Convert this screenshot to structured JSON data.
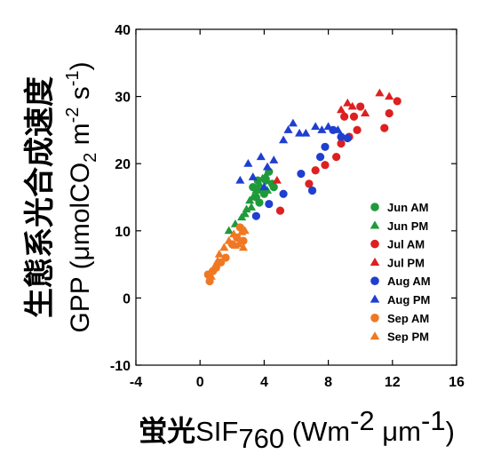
{
  "chart_data": {
    "type": "scatter",
    "ylabel": {
      "jp": "生態系光合成速度",
      "main": "GPP (μmolCO",
      "sub": "2",
      "mid1": " m",
      "sup1": "-2",
      "mid2": " s",
      "sup2": "-1",
      "end": ")"
    },
    "xlabel": {
      "jp": "蛍光",
      "main": "SIF",
      "sub": "760",
      "mid1": " (Wm",
      "sup1": "-2",
      "mid2": " μm",
      "sup2": "-1",
      "end": ")"
    },
    "xlim": [
      -4,
      16
    ],
    "ylim": [
      -10,
      40
    ],
    "xticks": [
      "-4",
      "0",
      "4",
      "8",
      "12",
      "16"
    ],
    "yticks": [
      "-10",
      "0",
      "10",
      "20",
      "30",
      "40"
    ],
    "legend_position": "right-center",
    "series": [
      {
        "name": "Jun AM",
        "color": "#1f9a3a",
        "marker": "circle",
        "points": [
          [
            3.3,
            16.5
          ],
          [
            3.6,
            17.5
          ],
          [
            3.9,
            16.0
          ],
          [
            4.1,
            17.5
          ],
          [
            4.3,
            18.8
          ],
          [
            4.5,
            17.0
          ],
          [
            4.0,
            15.5
          ],
          [
            3.5,
            15.0
          ],
          [
            3.7,
            14.2
          ],
          [
            4.6,
            16.5
          ]
        ]
      },
      {
        "name": "Jun PM",
        "color": "#1f9a3a",
        "marker": "triangle",
        "points": [
          [
            1.8,
            10.0
          ],
          [
            2.2,
            11.0
          ],
          [
            2.6,
            12.0
          ],
          [
            2.9,
            13.2
          ],
          [
            3.1,
            14.5
          ],
          [
            3.3,
            15.0
          ],
          [
            3.5,
            16.0
          ],
          [
            3.7,
            17.0
          ],
          [
            3.9,
            17.8
          ],
          [
            4.1,
            18.2
          ],
          [
            3.2,
            13.5
          ],
          [
            2.8,
            12.5
          ],
          [
            3.6,
            16.5
          ],
          [
            4.2,
            16.0
          ]
        ]
      },
      {
        "name": "Jul AM",
        "color": "#dd2020",
        "marker": "circle",
        "points": [
          [
            5.0,
            13.0
          ],
          [
            6.8,
            17.0
          ],
          [
            7.2,
            19.0
          ],
          [
            7.8,
            19.8
          ],
          [
            8.5,
            21.0
          ],
          [
            8.8,
            23.0
          ],
          [
            9.0,
            27.0
          ],
          [
            9.3,
            24.0
          ],
          [
            9.6,
            27.0
          ],
          [
            9.8,
            25.0
          ],
          [
            10.0,
            28.5
          ],
          [
            11.5,
            25.3
          ],
          [
            11.8,
            27.5
          ],
          [
            12.3,
            29.3
          ]
        ]
      },
      {
        "name": "Jul PM",
        "color": "#dd2020",
        "marker": "triangle",
        "points": [
          [
            8.8,
            28.0
          ],
          [
            9.2,
            29.0
          ],
          [
            9.5,
            28.5
          ],
          [
            10.3,
            27.5
          ],
          [
            11.2,
            30.5
          ],
          [
            11.8,
            30.0
          ],
          [
            4.8,
            17.5
          ]
        ]
      },
      {
        "name": "Aug AM",
        "color": "#1f3fd0",
        "marker": "circle",
        "points": [
          [
            3.5,
            12.2
          ],
          [
            4.3,
            14.0
          ],
          [
            5.2,
            15.5
          ],
          [
            6.3,
            18.5
          ],
          [
            7.0,
            16.0
          ],
          [
            7.5,
            21.0
          ],
          [
            7.8,
            22.5
          ],
          [
            8.3,
            25.0
          ],
          [
            8.8,
            24.0
          ],
          [
            9.2,
            23.8
          ]
        ]
      },
      {
        "name": "Aug PM",
        "color": "#1f3fd0",
        "marker": "triangle",
        "points": [
          [
            2.5,
            17.5
          ],
          [
            3.0,
            20.0
          ],
          [
            3.3,
            18.0
          ],
          [
            3.8,
            21.0
          ],
          [
            4.2,
            19.5
          ],
          [
            4.6,
            20.5
          ],
          [
            5.2,
            23.5
          ],
          [
            5.5,
            25.0
          ],
          [
            5.8,
            26.0
          ],
          [
            6.2,
            24.5
          ],
          [
            6.6,
            24.5
          ],
          [
            7.2,
            25.5
          ],
          [
            7.6,
            25.0
          ],
          [
            8.0,
            25.5
          ],
          [
            8.6,
            25.0
          ],
          [
            4.0,
            16.5
          ]
        ]
      },
      {
        "name": "Sep AM",
        "color": "#f07822",
        "marker": "circle",
        "points": [
          [
            0.6,
            2.5
          ],
          [
            0.8,
            4.0
          ],
          [
            1.0,
            4.5
          ],
          [
            1.3,
            5.3
          ],
          [
            1.6,
            6.0
          ],
          [
            2.0,
            8.0
          ],
          [
            2.3,
            9.0
          ],
          [
            2.5,
            10.5
          ],
          [
            2.7,
            8.5
          ],
          [
            0.5,
            3.5
          ]
        ]
      },
      {
        "name": "Sep PM",
        "color": "#f07822",
        "marker": "triangle",
        "points": [
          [
            0.7,
            3.2
          ],
          [
            1.0,
            5.0
          ],
          [
            1.2,
            6.5
          ],
          [
            1.5,
            7.5
          ],
          [
            1.8,
            8.5
          ],
          [
            2.1,
            9.5
          ],
          [
            2.4,
            8.0
          ],
          [
            2.6,
            9.8
          ],
          [
            2.8,
            10.0
          ],
          [
            1.1,
            5.5
          ],
          [
            2.2,
            7.8
          ],
          [
            2.7,
            7.5
          ]
        ]
      }
    ]
  }
}
